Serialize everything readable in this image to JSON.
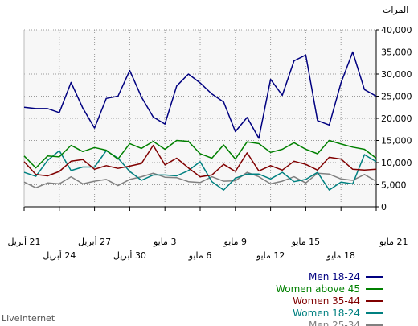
{
  "chart_data": {
    "type": "line",
    "ylabel": "المرات",
    "ylim": [
      0,
      40000
    ],
    "y_ticks": [
      "0",
      "5,000",
      "10,000",
      "15,000",
      "20,000",
      "25,000",
      "30,000",
      "35,000",
      "40,000"
    ],
    "y_tick_values": [
      0,
      5000,
      10000,
      15000,
      20000,
      25000,
      30000,
      35000,
      40000
    ],
    "x_tick_labels": [
      {
        "index": 0,
        "label": "21 مايو",
        "row": 1
      },
      {
        "index": 3,
        "label": "18 مايو",
        "row": 2
      },
      {
        "index": 6,
        "label": "15 مايو",
        "row": 1
      },
      {
        "index": 9,
        "label": "12 مايو",
        "row": 2
      },
      {
        "index": 12,
        "label": "9 مايو",
        "row": 1
      },
      {
        "index": 15,
        "label": "6 مايو",
        "row": 2
      },
      {
        "index": 18,
        "label": "3 مايو",
        "row": 1
      },
      {
        "index": 21,
        "label": "30 أبريل",
        "row": 2
      },
      {
        "index": 24,
        "label": "27 أبريل",
        "row": 1
      },
      {
        "index": 27,
        "label": "24 أبريل",
        "row": 2
      },
      {
        "index": 30,
        "label": "21 أبريل",
        "row": 1
      }
    ],
    "grid": true,
    "legend_position": "bottom-right",
    "series": [
      {
        "name": "Men 18-24",
        "color": "#000080",
        "values": [
          25000,
          26500,
          35000,
          28000,
          18500,
          19500,
          34300,
          33000,
          25200,
          28800,
          15500,
          20200,
          17000,
          23700,
          25500,
          28000,
          30000,
          27300,
          18700,
          20300,
          24800,
          30800,
          25000,
          24500,
          17800,
          22300,
          28100,
          21300,
          22200,
          22200,
          22500
        ]
      },
      {
        "name": "Women above 45",
        "color": "#008000",
        "values": [
          11000,
          13000,
          13500,
          14200,
          15000,
          12000,
          13000,
          14500,
          13000,
          12300,
          14300,
          14700,
          10800,
          14000,
          11000,
          12000,
          14800,
          15000,
          13000,
          14800,
          13200,
          14300,
          10800,
          12800,
          13400,
          12500,
          13900,
          11300,
          11500,
          8800,
          11500
        ]
      },
      {
        "name": "Women 35-44",
        "color": "#800000",
        "values": [
          8500,
          8300,
          8500,
          10800,
          11200,
          8300,
          9600,
          10300,
          8300,
          9300,
          8100,
          12200,
          8000,
          9600,
          7200,
          6800,
          8800,
          11000,
          9500,
          13900,
          9800,
          9200,
          8700,
          9300,
          8500,
          10700,
          10300,
          8000,
          7000,
          7300,
          10200
        ]
      },
      {
        "name": "Women 18-24",
        "color": "#008080",
        "values": [
          10200,
          11800,
          5200,
          5600,
          3800,
          7800,
          6200,
          5700,
          7800,
          6300,
          7400,
          7400,
          6500,
          3800,
          5700,
          10200,
          8200,
          7000,
          7200,
          7200,
          6000,
          8000,
          11000,
          12700,
          9000,
          9000,
          8200,
          12700,
          10500,
          6900,
          7800
        ]
      },
      {
        "name": "Men 25-34",
        "color": "#808080",
        "values": [
          5800,
          7300,
          6000,
          6300,
          7400,
          7600,
          5400,
          6800,
          5800,
          5200,
          6800,
          7800,
          5900,
          5800,
          6800,
          5500,
          5700,
          6600,
          6700,
          7600,
          6800,
          6200,
          4800,
          6200,
          5800,
          5200,
          6800,
          5200,
          5400,
          4300,
          5600
        ]
      }
    ]
  },
  "footer": {
    "brand": "LiveInternet"
  }
}
